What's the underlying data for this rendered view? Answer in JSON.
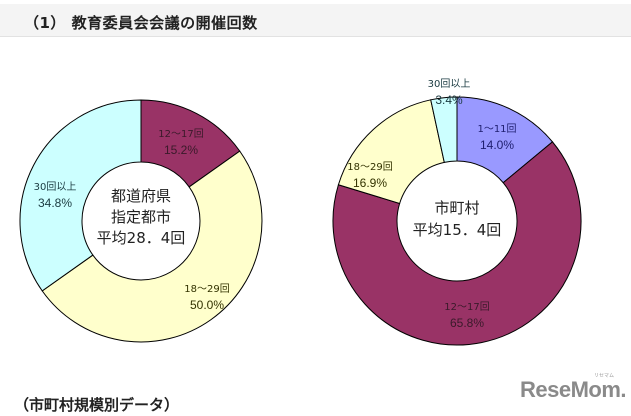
{
  "header": {
    "title": "（1） 教育委員会会議の開催回数"
  },
  "footer": {
    "title": "（市町村規模別データ）"
  },
  "logo": {
    "text": "ReseMom.",
    "ruby": "リセマム"
  },
  "colors": {
    "1to11": "#9999ff",
    "12to17": "#993366",
    "18to29": "#ffffcc",
    "30plus": "#ccffff"
  },
  "chart_data": [
    {
      "type": "pie",
      "variant": "donut",
      "center_label": [
        "都道府県",
        "指定都市",
        "平均28．4回"
      ],
      "categories": [
        "12〜17回",
        "18〜29回",
        "30回以上"
      ],
      "values": [
        15.2,
        50.0,
        34.8
      ],
      "value_labels": [
        "15.2%",
        "50.0%",
        "34.8%"
      ],
      "colors": [
        "#993366",
        "#ffffcc",
        "#ccffff"
      ],
      "average": 28.4
    },
    {
      "type": "pie",
      "variant": "donut",
      "center_label": [
        "市町村",
        "平均15．4回"
      ],
      "categories": [
        "1〜11回",
        "12〜17回",
        "18〜29回",
        "30回以上"
      ],
      "values": [
        14.0,
        65.8,
        16.9,
        3.4
      ],
      "value_labels": [
        "14.0%",
        "65.8%",
        "16.9%",
        "3.4%"
      ],
      "colors": [
        "#9999ff",
        "#993366",
        "#ffffcc",
        "#ccffff"
      ],
      "average": 15.4
    }
  ]
}
